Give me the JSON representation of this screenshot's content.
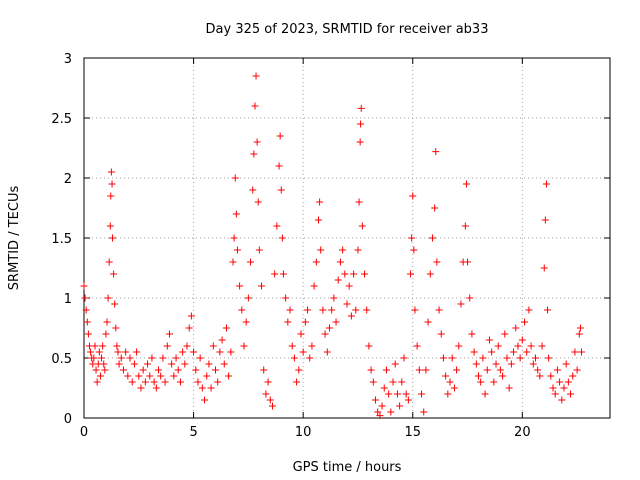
{
  "chart_data": {
    "type": "scatter",
    "title": "Day 325 of 2023, SRMTID for receiver ab33",
    "xlabel": "GPS time / hours",
    "ylabel": "SRMTID / TECUs",
    "xlim": [
      0,
      24
    ],
    "ylim": [
      0,
      3
    ],
    "x_ticks": [
      0,
      5,
      10,
      15,
      20
    ],
    "y_ticks": [
      0,
      0.5,
      1,
      1.5,
      2,
      2.5,
      3
    ],
    "grid": true,
    "marker": "+",
    "color": "#ff0000",
    "series": [
      {
        "name": "SRMTID",
        "points": [
          [
            0.0,
            1.1
          ],
          [
            0.05,
            1.0
          ],
          [
            0.1,
            0.9
          ],
          [
            0.15,
            0.8
          ],
          [
            0.2,
            0.7
          ],
          [
            0.25,
            0.6
          ],
          [
            0.3,
            0.55
          ],
          [
            0.35,
            0.5
          ],
          [
            0.4,
            0.45
          ],
          [
            0.45,
            0.5
          ],
          [
            0.5,
            0.6
          ],
          [
            0.55,
            0.4
          ],
          [
            0.6,
            0.3
          ],
          [
            0.65,
            0.45
          ],
          [
            0.7,
            0.55
          ],
          [
            0.75,
            0.35
          ],
          [
            0.8,
            0.5
          ],
          [
            0.85,
            0.6
          ],
          [
            0.9,
            0.45
          ],
          [
            0.95,
            0.4
          ],
          [
            1.0,
            0.7
          ],
          [
            1.05,
            0.8
          ],
          [
            1.1,
            1.0
          ],
          [
            1.15,
            1.3
          ],
          [
            1.2,
            1.6
          ],
          [
            1.22,
            1.85
          ],
          [
            1.25,
            2.05
          ],
          [
            1.28,
            1.95
          ],
          [
            1.3,
            1.5
          ],
          [
            1.35,
            1.2
          ],
          [
            1.4,
            0.95
          ],
          [
            1.45,
            0.75
          ],
          [
            1.5,
            0.6
          ],
          [
            1.55,
            0.55
          ],
          [
            1.6,
            0.45
          ],
          [
            1.7,
            0.5
          ],
          [
            1.8,
            0.4
          ],
          [
            1.9,
            0.55
          ],
          [
            2.0,
            0.35
          ],
          [
            2.1,
            0.5
          ],
          [
            2.2,
            0.3
          ],
          [
            2.3,
            0.45
          ],
          [
            2.4,
            0.55
          ],
          [
            2.5,
            0.35
          ],
          [
            2.6,
            0.25
          ],
          [
            2.7,
            0.4
          ],
          [
            2.8,
            0.3
          ],
          [
            2.9,
            0.45
          ],
          [
            3.0,
            0.35
          ],
          [
            3.1,
            0.5
          ],
          [
            3.2,
            0.3
          ],
          [
            3.3,
            0.25
          ],
          [
            3.4,
            0.4
          ],
          [
            3.5,
            0.35
          ],
          [
            3.6,
            0.5
          ],
          [
            3.7,
            0.3
          ],
          [
            3.8,
            0.6
          ],
          [
            3.9,
            0.7
          ],
          [
            4.0,
            0.45
          ],
          [
            4.1,
            0.35
          ],
          [
            4.2,
            0.5
          ],
          [
            4.3,
            0.4
          ],
          [
            4.4,
            0.3
          ],
          [
            4.5,
            0.55
          ],
          [
            4.6,
            0.45
          ],
          [
            4.7,
            0.6
          ],
          [
            4.8,
            0.75
          ],
          [
            4.9,
            0.85
          ],
          [
            5.0,
            0.55
          ],
          [
            5.1,
            0.4
          ],
          [
            5.2,
            0.3
          ],
          [
            5.3,
            0.5
          ],
          [
            5.4,
            0.25
          ],
          [
            5.5,
            0.15
          ],
          [
            5.6,
            0.35
          ],
          [
            5.7,
            0.45
          ],
          [
            5.8,
            0.25
          ],
          [
            5.9,
            0.6
          ],
          [
            6.0,
            0.4
          ],
          [
            6.1,
            0.3
          ],
          [
            6.2,
            0.55
          ],
          [
            6.3,
            0.65
          ],
          [
            6.4,
            0.45
          ],
          [
            6.5,
            0.75
          ],
          [
            6.6,
            0.35
          ],
          [
            6.7,
            0.55
          ],
          [
            6.8,
            1.3
          ],
          [
            6.85,
            1.5
          ],
          [
            6.9,
            2.0
          ],
          [
            6.95,
            1.7
          ],
          [
            7.0,
            1.4
          ],
          [
            7.1,
            1.1
          ],
          [
            7.2,
            0.9
          ],
          [
            7.3,
            0.6
          ],
          [
            7.4,
            0.8
          ],
          [
            7.5,
            1.0
          ],
          [
            7.6,
            1.3
          ],
          [
            7.7,
            1.9
          ],
          [
            7.75,
            2.2
          ],
          [
            7.8,
            2.6
          ],
          [
            7.85,
            2.85
          ],
          [
            7.9,
            2.3
          ],
          [
            7.95,
            1.8
          ],
          [
            8.0,
            1.4
          ],
          [
            8.1,
            1.1
          ],
          [
            8.2,
            0.4
          ],
          [
            8.3,
            0.2
          ],
          [
            8.4,
            0.3
          ],
          [
            8.5,
            0.15
          ],
          [
            8.6,
            0.1
          ],
          [
            8.7,
            1.2
          ],
          [
            8.8,
            1.6
          ],
          [
            8.9,
            2.1
          ],
          [
            8.95,
            2.35
          ],
          [
            9.0,
            1.9
          ],
          [
            9.05,
            1.5
          ],
          [
            9.1,
            1.2
          ],
          [
            9.2,
            1.0
          ],
          [
            9.3,
            0.8
          ],
          [
            9.4,
            0.9
          ],
          [
            9.5,
            0.6
          ],
          [
            9.6,
            0.5
          ],
          [
            9.7,
            0.3
          ],
          [
            9.8,
            0.4
          ],
          [
            9.9,
            0.7
          ],
          [
            10.0,
            0.55
          ],
          [
            10.1,
            0.8
          ],
          [
            10.2,
            0.9
          ],
          [
            10.3,
            0.5
          ],
          [
            10.4,
            0.6
          ],
          [
            10.5,
            1.1
          ],
          [
            10.6,
            1.3
          ],
          [
            10.7,
            1.65
          ],
          [
            10.75,
            1.8
          ],
          [
            10.8,
            1.4
          ],
          [
            10.9,
            0.9
          ],
          [
            11.0,
            0.7
          ],
          [
            11.1,
            0.55
          ],
          [
            11.2,
            0.75
          ],
          [
            11.3,
            0.9
          ],
          [
            11.4,
            1.0
          ],
          [
            11.5,
            0.8
          ],
          [
            11.6,
            1.15
          ],
          [
            11.7,
            1.3
          ],
          [
            11.8,
            1.4
          ],
          [
            11.9,
            1.2
          ],
          [
            12.0,
            0.95
          ],
          [
            12.1,
            1.1
          ],
          [
            12.2,
            0.85
          ],
          [
            12.3,
            1.2
          ],
          [
            12.4,
            0.9
          ],
          [
            12.5,
            1.4
          ],
          [
            12.55,
            1.8
          ],
          [
            12.6,
            2.3
          ],
          [
            12.62,
            2.45
          ],
          [
            12.65,
            2.58
          ],
          [
            12.7,
            1.6
          ],
          [
            12.8,
            1.2
          ],
          [
            12.9,
            0.9
          ],
          [
            13.0,
            0.6
          ],
          [
            13.1,
            0.4
          ],
          [
            13.2,
            0.3
          ],
          [
            13.3,
            0.15
          ],
          [
            13.4,
            0.05
          ],
          [
            13.5,
            0.02
          ],
          [
            13.6,
            0.1
          ],
          [
            13.7,
            0.25
          ],
          [
            13.8,
            0.4
          ],
          [
            13.9,
            0.2
          ],
          [
            14.0,
            0.05
          ],
          [
            14.1,
            0.3
          ],
          [
            14.2,
            0.45
          ],
          [
            14.3,
            0.2
          ],
          [
            14.4,
            0.1
          ],
          [
            14.5,
            0.3
          ],
          [
            14.6,
            0.5
          ],
          [
            14.7,
            0.2
          ],
          [
            14.8,
            0.15
          ],
          [
            14.9,
            1.2
          ],
          [
            14.95,
            1.5
          ],
          [
            15.0,
            1.85
          ],
          [
            15.05,
            1.4
          ],
          [
            15.1,
            0.9
          ],
          [
            15.2,
            0.6
          ],
          [
            15.3,
            0.4
          ],
          [
            15.4,
            0.2
          ],
          [
            15.5,
            0.05
          ],
          [
            15.6,
            0.4
          ],
          [
            15.7,
            0.8
          ],
          [
            15.8,
            1.2
          ],
          [
            15.9,
            1.5
          ],
          [
            16.0,
            1.75
          ],
          [
            16.05,
            2.22
          ],
          [
            16.1,
            1.3
          ],
          [
            16.2,
            0.9
          ],
          [
            16.3,
            0.7
          ],
          [
            16.4,
            0.5
          ],
          [
            16.5,
            0.35
          ],
          [
            16.6,
            0.2
          ],
          [
            16.7,
            0.3
          ],
          [
            16.8,
            0.5
          ],
          [
            16.9,
            0.25
          ],
          [
            17.0,
            0.4
          ],
          [
            17.1,
            0.6
          ],
          [
            17.2,
            0.95
          ],
          [
            17.3,
            1.3
          ],
          [
            17.4,
            1.6
          ],
          [
            17.45,
            1.95
          ],
          [
            17.5,
            1.3
          ],
          [
            17.6,
            1.0
          ],
          [
            17.7,
            0.7
          ],
          [
            17.8,
            0.55
          ],
          [
            17.9,
            0.45
          ],
          [
            18.0,
            0.35
          ],
          [
            18.1,
            0.3
          ],
          [
            18.2,
            0.5
          ],
          [
            18.3,
            0.2
          ],
          [
            18.4,
            0.4
          ],
          [
            18.5,
            0.65
          ],
          [
            18.6,
            0.55
          ],
          [
            18.7,
            0.3
          ],
          [
            18.8,
            0.45
          ],
          [
            18.9,
            0.6
          ],
          [
            19.0,
            0.4
          ],
          [
            19.1,
            0.35
          ],
          [
            19.2,
            0.7
          ],
          [
            19.3,
            0.5
          ],
          [
            19.4,
            0.25
          ],
          [
            19.5,
            0.45
          ],
          [
            19.6,
            0.55
          ],
          [
            19.7,
            0.75
          ],
          [
            19.8,
            0.6
          ],
          [
            19.9,
            0.5
          ],
          [
            20.0,
            0.65
          ],
          [
            20.1,
            0.8
          ],
          [
            20.2,
            0.55
          ],
          [
            20.3,
            0.9
          ],
          [
            20.4,
            0.6
          ],
          [
            20.5,
            0.45
          ],
          [
            20.6,
            0.5
          ],
          [
            20.7,
            0.4
          ],
          [
            20.8,
            0.35
          ],
          [
            20.9,
            0.6
          ],
          [
            21.0,
            1.25
          ],
          [
            21.05,
            1.65
          ],
          [
            21.1,
            1.95
          ],
          [
            21.15,
            0.9
          ],
          [
            21.2,
            0.5
          ],
          [
            21.3,
            0.35
          ],
          [
            21.4,
            0.25
          ],
          [
            21.5,
            0.2
          ],
          [
            21.6,
            0.4
          ],
          [
            21.7,
            0.3
          ],
          [
            21.8,
            0.15
          ],
          [
            21.9,
            0.25
          ],
          [
            22.0,
            0.45
          ],
          [
            22.1,
            0.3
          ],
          [
            22.2,
            0.2
          ],
          [
            22.3,
            0.35
          ],
          [
            22.4,
            0.55
          ],
          [
            22.5,
            0.4
          ],
          [
            22.6,
            0.7
          ],
          [
            22.65,
            0.75
          ],
          [
            22.7,
            0.55
          ]
        ]
      }
    ]
  }
}
